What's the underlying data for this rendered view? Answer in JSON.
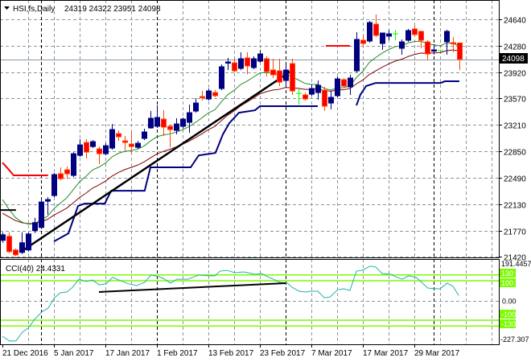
{
  "header": {
    "symbol_label": "HSI,fs,Daily",
    "ohlc": "24319 24322 23951 24098",
    "menu_icon": "triangle-down-icon"
  },
  "price_axis": {
    "ticks": [
      24640,
      24280,
      23920,
      23570,
      23210,
      22850,
      22490,
      22130,
      21770,
      21420
    ],
    "tick_labels": [
      "24640",
      "24280",
      "23920",
      "23570",
      "23210",
      "22850",
      "22490",
      "22130",
      "21770",
      "21420"
    ],
    "range": [
      21420,
      24640
    ],
    "current_price": 24098,
    "current_price_label": "24098"
  },
  "cci_panel": {
    "label": "CCI(40) 24.4331",
    "range": [
      -227.307,
      191.4457
    ],
    "max_label": "191.4457",
    "min_label": "-227.307",
    "zero_label": "0.00",
    "levels": [
      130,
      100,
      -100,
      -130
    ],
    "level_labels": [
      "130",
      "100",
      "-100",
      "-130"
    ]
  },
  "date_axis": {
    "labels": [
      "21 Dec 2016",
      "5 Jan 2017",
      "17 Jan 2017",
      "1 Feb 2017",
      "13 Feb 2017",
      "23 Feb 2017",
      "7 Mar 2017",
      "17 Mar 2017",
      "29 Mar 2017"
    ],
    "label_bars": [
      0,
      8,
      16,
      24,
      32,
      40,
      48,
      56,
      64
    ]
  },
  "colors": {
    "up": "#000080",
    "down": "#ff0000",
    "down_outline": "#ff4500",
    "doji": "#00ff00",
    "ma_fast": "#228b22",
    "ma_slow": "#800000",
    "stop_line": "#000080",
    "red_line": "#ff0000",
    "trend": "#000000",
    "cci": "#20b2aa",
    "cci_level": "#7cfc00",
    "grid": "#8c95a0"
  },
  "chart_data": {
    "type": "candlestick",
    "title": "HSI,fs,Daily",
    "ylim": [
      21420,
      24640
    ],
    "candles_ohlc": [
      [
        21641,
        21750,
        21608,
        21717
      ],
      [
        21695,
        21750,
        21466,
        21488
      ],
      [
        21510,
        21532,
        21422,
        21444
      ],
      [
        21477,
        21750,
        21455,
        21608
      ],
      [
        21510,
        21750,
        21488,
        21728
      ],
      [
        21772,
        21947,
        21739,
        21881
      ],
      [
        21816,
        22194,
        21794,
        22161
      ],
      [
        22172,
        22227,
        21990,
        22194
      ],
      [
        22249,
        22555,
        22227,
        22533
      ],
      [
        22544,
        22631,
        22456,
        22478
      ],
      [
        22598,
        22642,
        22478,
        22544
      ],
      [
        22522,
        22838,
        22500,
        22816
      ],
      [
        22794,
        23013,
        22773,
        22936
      ],
      [
        22969,
        23013,
        22751,
        22838
      ],
      [
        22914,
        23002,
        22893,
        22980
      ],
      [
        22882,
        22914,
        22674,
        22816
      ],
      [
        22816,
        22958,
        22794,
        22925
      ],
      [
        22893,
        23220,
        22871,
        23144
      ],
      [
        23089,
        23133,
        22991,
        23046
      ],
      [
        22991,
        23057,
        22860,
        22969
      ],
      [
        22947,
        23111,
        22816,
        22914
      ],
      [
        22903,
        22991,
        22882,
        22958
      ],
      [
        23024,
        23155,
        23002,
        23111
      ],
      [
        23166,
        23395,
        23155,
        23297
      ],
      [
        23188,
        23472,
        23166,
        23308
      ],
      [
        23286,
        23406,
        23057,
        23177
      ],
      [
        23188,
        23210,
        22903,
        23144
      ],
      [
        23133,
        23297,
        23079,
        23220
      ],
      [
        23188,
        23308,
        23155,
        23286
      ],
      [
        23242,
        23483,
        23100,
        23373
      ],
      [
        23395,
        23570,
        23373,
        23504
      ],
      [
        23592,
        23668,
        23537,
        23581
      ],
      [
        23559,
        23701,
        23537,
        23668
      ],
      [
        23646,
        23679,
        23581,
        23603
      ],
      [
        23701,
        24028,
        23679,
        23996
      ],
      [
        24050,
        24116,
        23952,
        24061
      ],
      [
        24050,
        24116,
        23919,
        23941
      ],
      [
        23974,
        24192,
        23952,
        24105
      ],
      [
        24116,
        24192,
        23897,
        24007
      ],
      [
        23985,
        24138,
        23963,
        24105
      ],
      [
        24072,
        24225,
        24050,
        24170
      ],
      [
        24105,
        24138,
        23865,
        23930
      ],
      [
        23952,
        24105,
        23843,
        23887
      ],
      [
        23941,
        24105,
        23734,
        23788
      ],
      [
        23810,
        24028,
        23734,
        23952
      ],
      [
        24039,
        24105,
        23614,
        23668
      ],
      [
        23635,
        23701,
        23483,
        23635
      ],
      [
        23614,
        23646,
        23537,
        23559
      ],
      [
        23624,
        23756,
        23603,
        23701
      ],
      [
        23646,
        23810,
        23548,
        23745
      ],
      [
        23679,
        23723,
        23395,
        23461
      ],
      [
        23504,
        23668,
        23417,
        23581
      ],
      [
        23603,
        23865,
        23581,
        23832
      ],
      [
        23821,
        23843,
        23712,
        23734
      ],
      [
        23723,
        23887,
        23614,
        23843
      ],
      [
        23941,
        24465,
        23919,
        24367
      ],
      [
        24356,
        24422,
        24269,
        24312
      ],
      [
        24345,
        24618,
        24323,
        24596
      ],
      [
        24574,
        24705,
        24400,
        24422
      ],
      [
        24312,
        24454,
        24225,
        24454
      ],
      [
        24411,
        24498,
        24356,
        24443
      ],
      [
        24443,
        24498,
        24356,
        24443
      ],
      [
        24247,
        24367,
        24160,
        24334
      ],
      [
        24356,
        24509,
        24334,
        24487
      ],
      [
        24509,
        24552,
        24411,
        24433
      ],
      [
        24476,
        24487,
        24247,
        24356
      ],
      [
        24334,
        24356,
        24094,
        24170
      ],
      [
        24214,
        24301,
        24160,
        24225
      ],
      [
        24214,
        24225,
        24203,
        24214
      ],
      [
        24334,
        24498,
        24160,
        24476
      ],
      [
        24323,
        24400,
        24192,
        24312
      ],
      [
        24319,
        24322,
        23951,
        24098
      ]
    ],
    "ma_fast": {
      "type": "ema",
      "period": 10,
      "seed": 22300
    },
    "ma_slow": {
      "type": "ema",
      "period": 20,
      "seed": 22040
    },
    "stop_line_segments": [
      [
        [
          8,
          21626
        ],
        [
          10.25,
          21735
        ],
        [
          11.75,
          22107
        ],
        [
          12.75,
          22139
        ],
        [
          15.9,
          22139
        ],
        [
          16.9,
          22314
        ],
        [
          22.1,
          22314
        ],
        [
          23,
          22631
        ],
        [
          29.25,
          22631
        ],
        [
          30.5,
          22794
        ],
        [
          33.1,
          22827
        ],
        [
          34.25,
          23078
        ],
        [
          35.25,
          23231
        ],
        [
          36.75,
          23373
        ],
        [
          39.25,
          23406
        ],
        [
          40,
          23461
        ],
        [
          49,
          23461
        ]
      ],
      [
        [
          55,
          23472
        ],
        [
          55.6,
          23614
        ],
        [
          56.5,
          23734
        ],
        [
          58,
          23777
        ],
        [
          68.1,
          23777
        ],
        [
          68.75,
          23799
        ],
        [
          71,
          23799
        ]
      ]
    ],
    "red_line_segments": [
      [
        [
          0,
          22696
        ],
        [
          0.9,
          22609
        ],
        [
          1.75,
          22522
        ],
        [
          7.1,
          22522
        ]
      ],
      [
        [
          50.25,
          24280
        ],
        [
          54,
          24280
        ]
      ]
    ],
    "black_stub": [
      [
        -0.4,
        22052
      ],
      [
        2.1,
        22052
      ]
    ],
    "trendline": [
      [
        3.4,
        21517
      ],
      [
        44.9,
        23941
      ]
    ],
    "cci": [
      [
        0,
        -182
      ],
      [
        1.1,
        -206
      ],
      [
        2.1,
        -206
      ],
      [
        3.1,
        -161
      ],
      [
        4,
        -141
      ],
      [
        5,
        -96
      ],
      [
        6.1,
        -59
      ],
      [
        7.1,
        -39
      ],
      [
        8.1,
        14
      ],
      [
        9,
        39
      ],
      [
        10,
        43
      ],
      [
        10.9,
        67
      ],
      [
        11.9,
        108
      ],
      [
        13,
        96
      ],
      [
        14,
        104
      ],
      [
        15,
        80
      ],
      [
        16.1,
        84
      ],
      [
        17.1,
        117
      ],
      [
        18.1,
        104
      ],
      [
        19.6,
        84
      ],
      [
        20.9,
        76
      ],
      [
        22.1,
        92
      ],
      [
        23.1,
        129
      ],
      [
        24.3,
        121
      ],
      [
        25,
        112
      ],
      [
        26.1,
        88
      ],
      [
        27.1,
        108
      ],
      [
        28.8,
        108
      ],
      [
        30.5,
        129
      ],
      [
        32.1,
        125
      ],
      [
        33,
        125
      ],
      [
        33.8,
        149
      ],
      [
        34.9,
        153
      ],
      [
        36.1,
        141
      ],
      [
        37.5,
        145
      ],
      [
        39.3,
        133
      ],
      [
        40.3,
        137
      ],
      [
        40.9,
        125
      ],
      [
        42.1,
        108
      ],
      [
        43.1,
        92
      ],
      [
        44.3,
        88
      ],
      [
        45,
        67
      ],
      [
        46.1,
        47
      ],
      [
        47.1,
        43
      ],
      [
        48,
        47
      ],
      [
        49,
        47
      ],
      [
        50,
        14
      ],
      [
        50.9,
        18
      ],
      [
        52.1,
        55
      ],
      [
        53,
        59
      ],
      [
        54,
        51
      ],
      [
        55,
        149
      ],
      [
        55.9,
        153
      ],
      [
        57.1,
        174
      ],
      [
        58,
        170
      ],
      [
        59,
        137
      ],
      [
        60.3,
        133
      ],
      [
        61.1,
        121
      ],
      [
        62.1,
        108
      ],
      [
        63.1,
        125
      ],
      [
        64.3,
        117
      ],
      [
        65,
        96
      ],
      [
        66.1,
        63
      ],
      [
        68,
        59
      ],
      [
        69.1,
        88
      ],
      [
        70,
        72
      ],
      [
        70.9,
        24.4331
      ]
    ],
    "cci_trendline": [
      [
        15,
        43
      ],
      [
        44,
        88
      ]
    ]
  }
}
